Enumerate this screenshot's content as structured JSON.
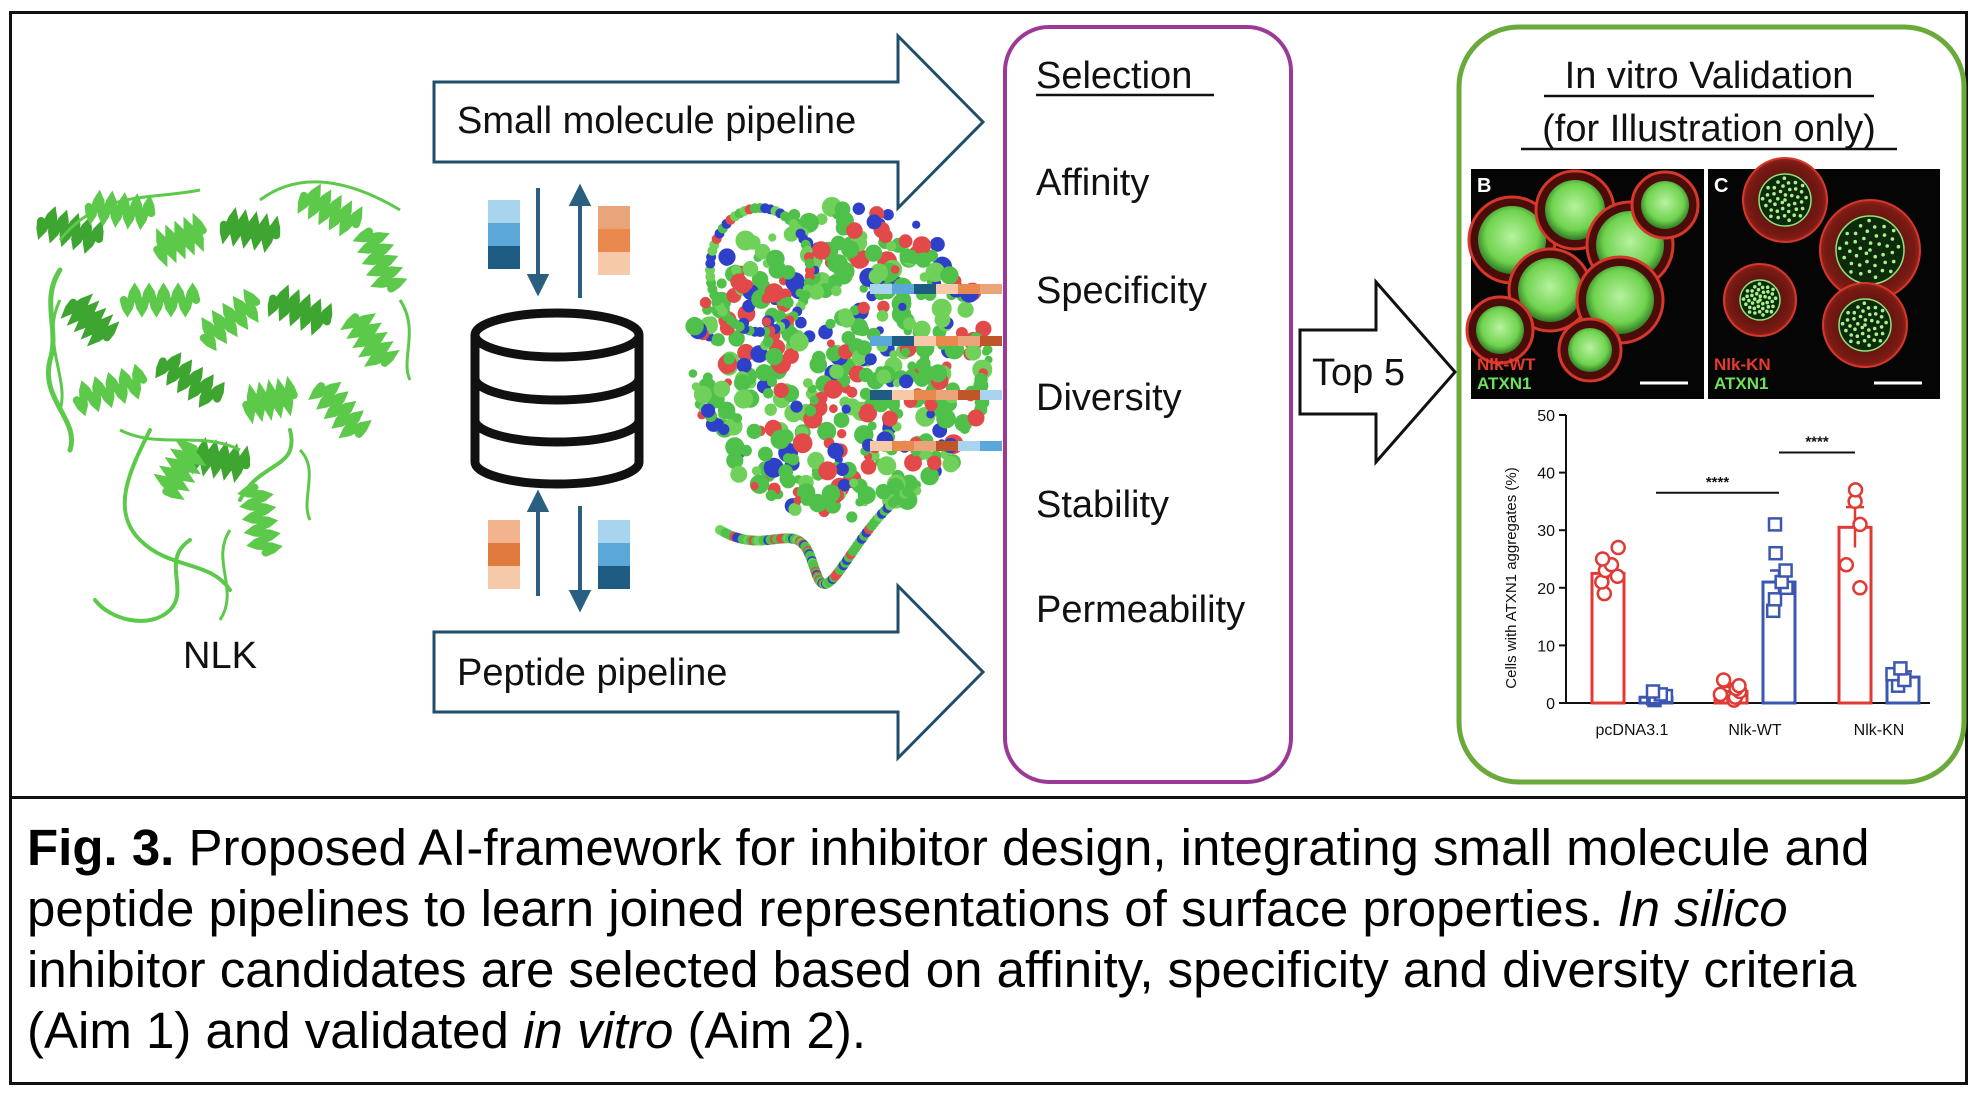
{
  "protein": {
    "label": "NLK"
  },
  "pipelines": {
    "small_molecule": "Small molecule pipeline",
    "peptide": "Peptide pipeline"
  },
  "selection": {
    "title": "Selection",
    "criteria": [
      "Affinity",
      "Specificity",
      "Diversity",
      "Stability",
      "Permeability"
    ]
  },
  "top_arrow": {
    "label": "Top 5"
  },
  "validation": {
    "title_line1": "In vitro Validation",
    "title_line2": "(for Illustration only)",
    "micrographs": [
      {
        "panel": "B",
        "label_red": "Nlk-WT",
        "label_green": "ATXN1"
      },
      {
        "panel": "C",
        "label_red": "Nlk-KN",
        "label_green": "ATXN1"
      }
    ]
  },
  "colors": {
    "selection_border": "#9b3a96",
    "validation_border": "#6aaa3a",
    "arrow_stroke": "#1f4e6b",
    "protein_green": "#5cc94a",
    "series_red": "#e03a35",
    "series_blue": "#3b57b0",
    "block_blue": [
      "#a9d4f0",
      "#5aa7d8",
      "#1f5c84"
    ],
    "block_orange": [
      "#f6c9a8",
      "#e9894e",
      "#c0552a"
    ]
  },
  "chart_data": {
    "type": "bar",
    "ylabel": "Cells with ATXN1 aggregates (%)",
    "ylim": [
      0,
      50
    ],
    "yticks": [
      0,
      10,
      20,
      30,
      40,
      50
    ],
    "categories": [
      "pcDNA3.1",
      "Nlk-WT",
      "Nlk-KN"
    ],
    "series": [
      {
        "values": [
          22.5,
          2.0,
          30.5
        ],
        "err": [
          1.5,
          0.8,
          3.5
        ],
        "points": [
          [
            19,
            21,
            22,
            23,
            24,
            25,
            27
          ],
          [
            0.5,
            1,
            1.5,
            2,
            2.5,
            3,
            4
          ],
          [
            20,
            24,
            31,
            35,
            37
          ]
        ]
      },
      {
        "values": [
          1.0,
          21.0,
          4.5
        ],
        "err": [
          0.5,
          2.0,
          1.0
        ],
        "points": [
          [
            0.5,
            0.8,
            1,
            1.2,
            1.5,
            2
          ],
          [
            16,
            18,
            20,
            21,
            23,
            26,
            31
          ],
          [
            3,
            4,
            5,
            6
          ]
        ]
      }
    ],
    "significance": [
      {
        "from": 1,
        "to": 3,
        "label": "****"
      },
      {
        "from": 3,
        "to": 4,
        "label": "****"
      }
    ]
  },
  "caption": {
    "fig_label": "Fig. 3.",
    "part1": " Proposed AI-framework for inhibitor design, integrating small molecule and peptide pipelines to learn joined representations of surface properties. ",
    "part2_italic": "In silico",
    "part3": " inhibitor candidates are selected based on affinity, specificity and diversity criteria (Aim 1) and validated ",
    "part4_italic": "in vitro",
    "part5": " (Aim 2)."
  }
}
